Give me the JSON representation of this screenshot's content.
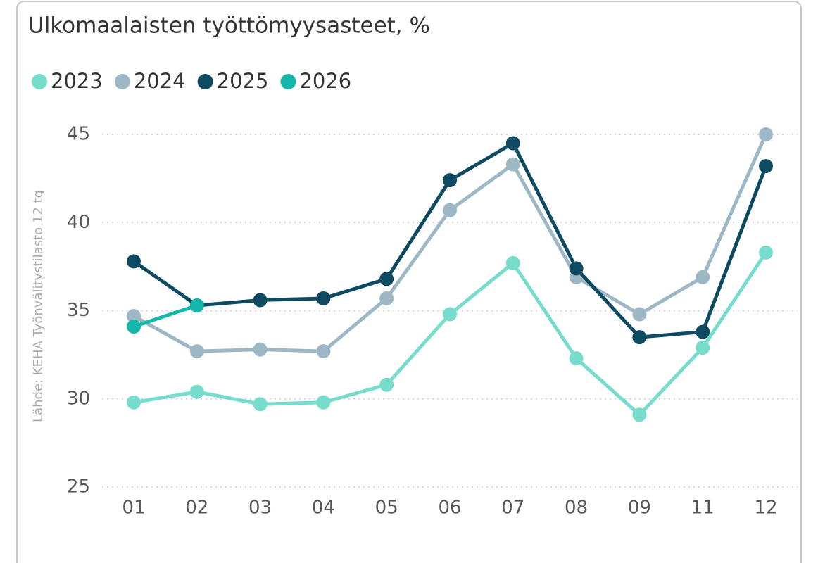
{
  "chart_data": {
    "type": "line",
    "title": "Ulkomaalaisten työttömyysasteet, %",
    "y_label": "Lähde: KEHA Työnvälitystilasto 12 tg",
    "categories": [
      "01",
      "02",
      "03",
      "04",
      "05",
      "06",
      "07",
      "08",
      "09",
      "11",
      "12"
    ],
    "series": [
      {
        "name": "2023",
        "color": "#76dccb",
        "values": [
          29.8,
          30.4,
          29.7,
          29.8,
          30.8,
          34.8,
          37.7,
          32.3,
          29.1,
          32.9,
          38.3
        ]
      },
      {
        "name": "2024",
        "color": "#9db7c4",
        "values": [
          34.7,
          32.7,
          32.8,
          32.7,
          35.7,
          40.7,
          43.3,
          36.9,
          34.8,
          36.9,
          45.0
        ]
      },
      {
        "name": "2025",
        "color": "#0e4a62",
        "values": [
          37.8,
          35.3,
          35.6,
          35.7,
          36.8,
          42.4,
          44.5,
          37.4,
          33.5,
          33.8,
          43.2
        ]
      },
      {
        "name": "2026",
        "color": "#14b7aa",
        "values": [
          34.1,
          35.3,
          null,
          null,
          null,
          null,
          null,
          null,
          null,
          null,
          null
        ]
      }
    ],
    "ylim": [
      25,
      45
    ],
    "yticks": [
      25,
      30,
      35,
      40,
      45
    ],
    "grid": true,
    "legend": "top-left"
  }
}
